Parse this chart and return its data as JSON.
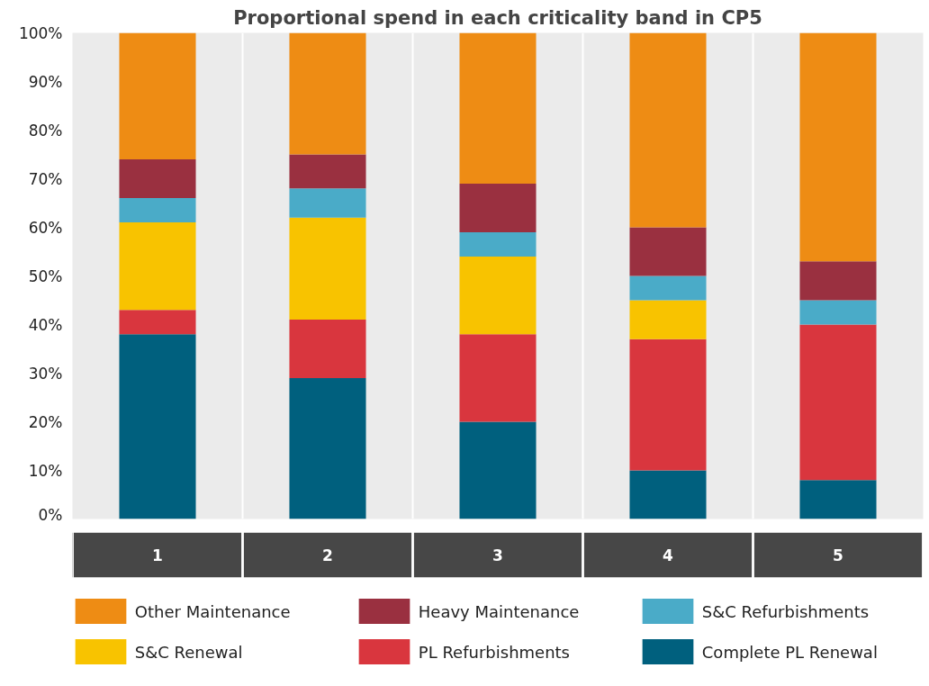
{
  "chart_data": {
    "type": "bar",
    "stacked": true,
    "title": "Proportional spend in each criticality band in CP5",
    "categories": [
      "1",
      "2",
      "3",
      "4",
      "5"
    ],
    "series": [
      {
        "name": "Complete PL Renewal",
        "color": "#00607e",
        "values": [
          38,
          29,
          20,
          10,
          8
        ]
      },
      {
        "name": "PL Refurbishments",
        "color": "#d9363e",
        "values": [
          5,
          12,
          18,
          27,
          32
        ]
      },
      {
        "name": "S&C Renewal",
        "color": "#f8c300",
        "values": [
          18,
          21,
          16,
          8,
          0
        ]
      },
      {
        "name": "S&C Refurbishments",
        "color": "#4aabc8",
        "values": [
          5,
          6,
          5,
          5,
          5
        ]
      },
      {
        "name": "Heavy Maintenance",
        "color": "#9a3040",
        "values": [
          8,
          7,
          10,
          10,
          8
        ]
      },
      {
        "name": "Other Maintenance",
        "color": "#ee8c14",
        "values": [
          26,
          25,
          31,
          40,
          47
        ]
      }
    ],
    "ylim": [
      0,
      100
    ],
    "yticks": [
      {
        "value": 0,
        "label": "0%"
      },
      {
        "value": 10,
        "label": "10%"
      },
      {
        "value": 20,
        "label": "20%"
      },
      {
        "value": 30,
        "label": "30%"
      },
      {
        "value": 40,
        "label": "40%"
      },
      {
        "value": 50,
        "label": "50%"
      },
      {
        "value": 60,
        "label": "60%"
      },
      {
        "value": 70,
        "label": "70%"
      },
      {
        "value": 80,
        "label": "80%"
      },
      {
        "value": 90,
        "label": "90%"
      },
      {
        "value": 100,
        "label": "100%"
      }
    ],
    "grid": "x",
    "legend": "bottom"
  }
}
